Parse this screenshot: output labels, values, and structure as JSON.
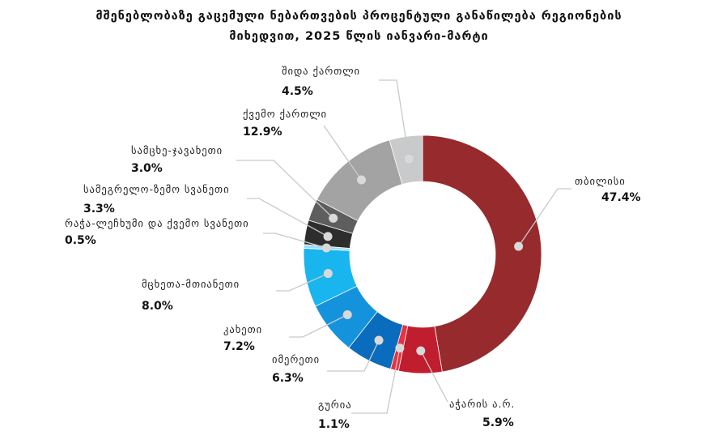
{
  "title": {
    "line1": "მშენებლობაზე გაცემული ნებართვების პროცენტული განაწილება რეგიონების",
    "line2": "მიხედვით, 2025 წლის იანვარი-მარტი"
  },
  "chart_data": {
    "type": "pie",
    "donut": true,
    "title": "მშენებლობაზე გაცემული ნებართვების პროცენტული განაწილება რეგიონების მიხედვით, 2025 წლის იანვარი-მარტი",
    "unit": "%",
    "slices": [
      {
        "name": "თბილისი",
        "value": 47.4,
        "value_label": "47.4%",
        "color": "#962a2c"
      },
      {
        "name": "აჭარის ა.რ.",
        "value": 5.9,
        "value_label": "5.9%",
        "color": "#c01d2e"
      },
      {
        "name": "გურია",
        "value": 1.1,
        "value_label": "1.1%",
        "color": "#e8323f"
      },
      {
        "name": "იმერეთი",
        "value": 6.3,
        "value_label": "6.3%",
        "color": "#0a6cbd"
      },
      {
        "name": "კახეთი",
        "value": 7.2,
        "value_label": "7.2%",
        "color": "#1493dc"
      },
      {
        "name": "მცხეთა-მთიანეთი",
        "value": 8.0,
        "value_label": "8.0%",
        "color": "#19b5ee"
      },
      {
        "name": "რაჭა-ლეჩხუმი და ქვემო სვანეთი",
        "value": 0.5,
        "value_label": "0.5%",
        "color": "#9fdcf6"
      },
      {
        "name": "სამეგრელო-ზემო სვანეთი",
        "value": 3.3,
        "value_label": "3.3%",
        "color": "#2d2d2d"
      },
      {
        "name": "სამცხე-ჯავახეთი",
        "value": 3.0,
        "value_label": "3.0%",
        "color": "#5e5e5e"
      },
      {
        "name": "ქვემო ქართლი",
        "value": 12.9,
        "value_label": "12.9%",
        "color": "#a3a3a3"
      },
      {
        "name": "შიდა ქართლი",
        "value": 4.5,
        "value_label": "4.5%",
        "color": "#c8cacb"
      }
    ]
  }
}
